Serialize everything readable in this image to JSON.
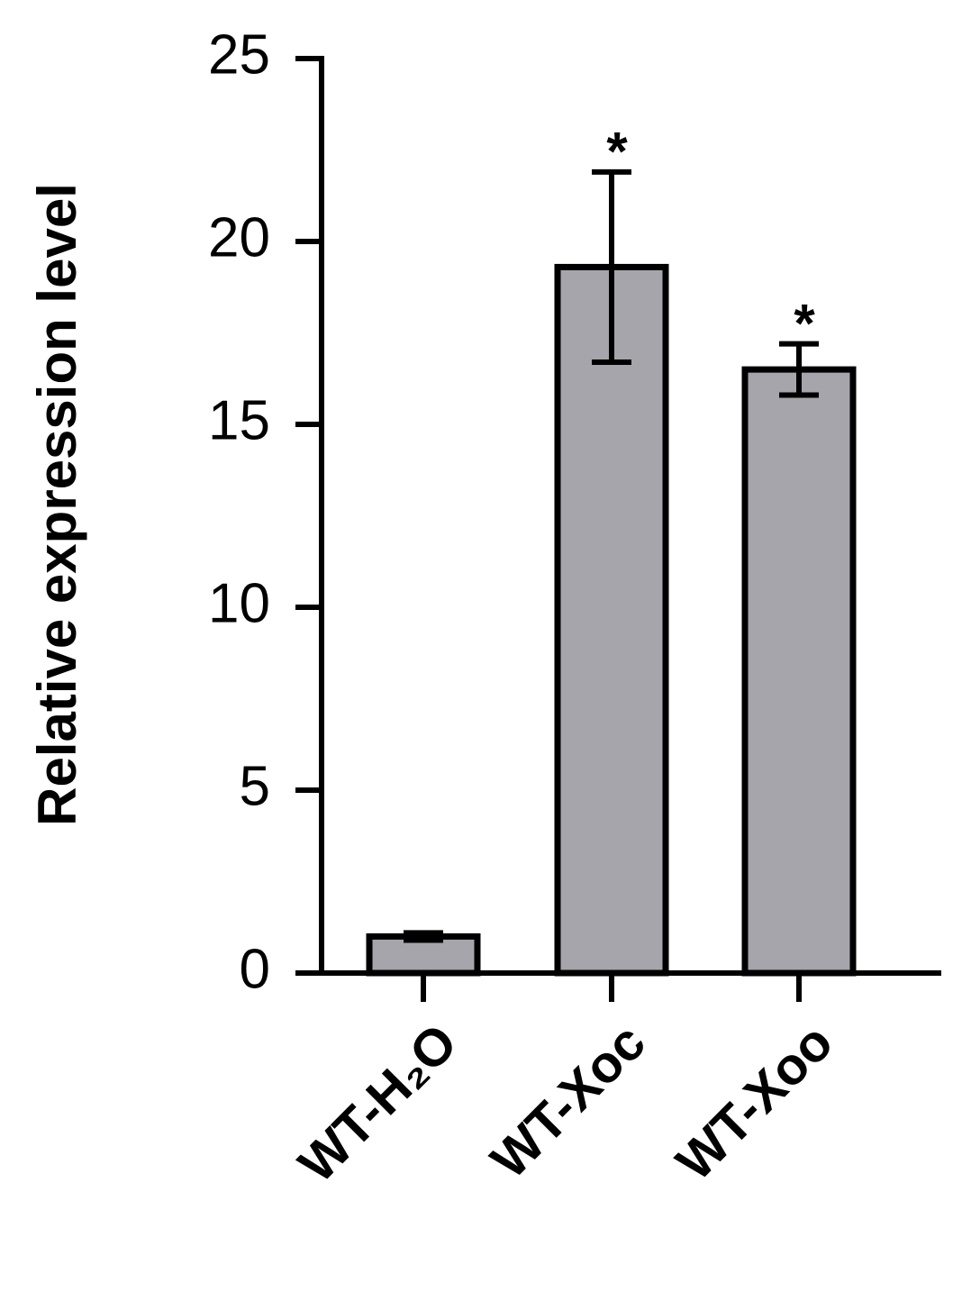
{
  "chart_data": {
    "type": "bar",
    "ylabel": "Relative expression level",
    "categories": [
      "WT-H₂O",
      "WT-Xoc",
      "WT-Xoo"
    ],
    "values": [
      1.0,
      19.3,
      16.5
    ],
    "errors": [
      0.1,
      2.6,
      0.7
    ],
    "annotations": [
      null,
      "*",
      "*"
    ],
    "color": "#a6a5ab",
    "ylim": [
      0,
      25
    ],
    "yticks": [
      0,
      5,
      10,
      15,
      20,
      25
    ]
  }
}
